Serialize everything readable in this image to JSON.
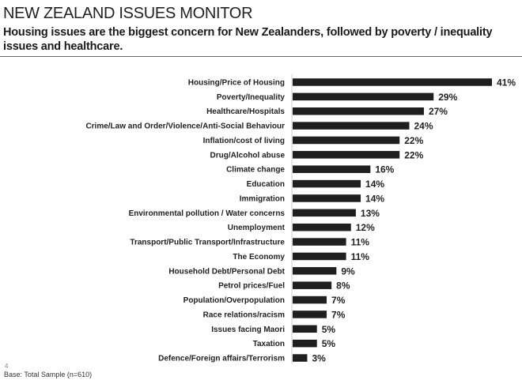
{
  "header": {
    "title": "NEW ZEALAND ISSUES MONITOR",
    "subtitle": "Housing issues are the biggest concern for New Zealanders, followed by poverty / inequality issues and healthcare."
  },
  "footer": {
    "page_number": "4",
    "base": "Base: Total Sample (n=610)"
  },
  "chart_data": {
    "type": "bar",
    "orientation": "horizontal",
    "bar_color": "#1f1f1f",
    "categories": [
      "Housing/Price of Housing",
      "Poverty/Inequality",
      "Healthcare/Hospitals",
      "Crime/Law and Order/Violence/Anti-Social Behaviour",
      "Inflation/cost of living",
      "Drug/Alcohol abuse",
      "Climate change",
      "Education",
      "Immigration",
      "Environmental pollution / Water concerns",
      "Unemployment",
      "Transport/Public Transport/Infrastructure",
      "The Economy",
      "Household Debt/Personal Debt",
      "Petrol prices/Fuel",
      "Population/Overpopulation",
      "Race relations/racism",
      "Issues facing Maori",
      "Taxation",
      "Defence/Foreign affairs/Terrorism"
    ],
    "values": [
      41,
      29,
      27,
      24,
      22,
      22,
      16,
      14,
      14,
      13,
      12,
      11,
      11,
      9,
      8,
      7,
      7,
      5,
      5,
      3
    ],
    "value_labels": [
      "41%",
      "29%",
      "27%",
      "24%",
      "22%",
      "22%",
      "16%",
      "14%",
      "14%",
      "13%",
      "12%",
      "11%",
      "11%",
      "9%",
      "8%",
      "7%",
      "7%",
      "5%",
      "5%",
      "3%"
    ],
    "unit": "%",
    "xlim": [
      0,
      41
    ],
    "grid": false
  }
}
